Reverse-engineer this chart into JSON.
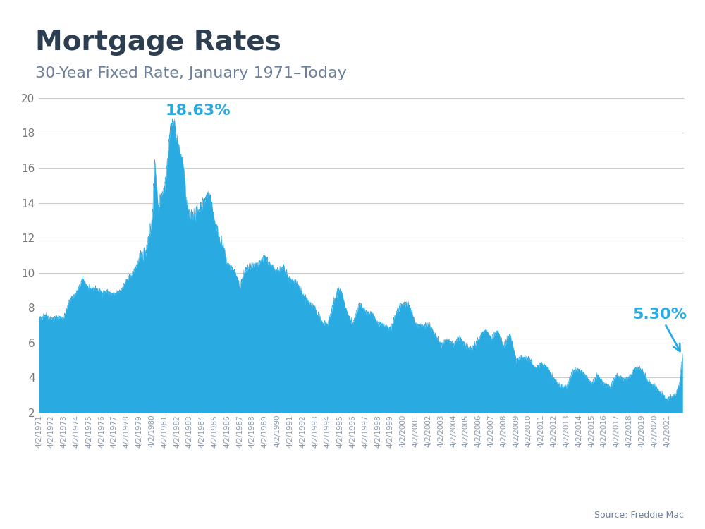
{
  "title": "Mortgage Rates",
  "subtitle": "30-Year Fixed Rate, January 1971–Today",
  "source": "Source: Freddie Mac",
  "fill_color": "#29ABE2",
  "line_color": "#29ABE2",
  "annotation_color": "#29ABE2",
  "title_color": "#2d3e50",
  "subtitle_color": "#6d8099",
  "background_color": "#ffffff",
  "top_bar_color": "#29ABE2",
  "ylim": [
    2,
    20
  ],
  "yticks": [
    2,
    4,
    6,
    8,
    10,
    12,
    14,
    16,
    18,
    20
  ],
  "peak_label": "18.63%",
  "end_label": "5.30%",
  "title_fontsize": 28,
  "subtitle_fontsize": 16,
  "annotation_fontsize": 16,
  "tick_fontsize": 11,
  "key_points": [
    [
      1971.0,
      7.33
    ],
    [
      1971.5,
      7.6
    ],
    [
      1972.0,
      7.37
    ],
    [
      1972.5,
      7.46
    ],
    [
      1973.0,
      7.44
    ],
    [
      1973.5,
      8.5
    ],
    [
      1974.0,
      8.83
    ],
    [
      1974.5,
      9.64
    ],
    [
      1975.0,
      9.05
    ],
    [
      1975.5,
      9.1
    ],
    [
      1976.0,
      8.87
    ],
    [
      1976.5,
      8.9
    ],
    [
      1977.0,
      8.72
    ],
    [
      1977.5,
      8.98
    ],
    [
      1978.0,
      9.56
    ],
    [
      1978.5,
      9.98
    ],
    [
      1979.0,
      10.78
    ],
    [
      1979.5,
      11.2
    ],
    [
      1980.0,
      12.88
    ],
    [
      1980.25,
      16.35
    ],
    [
      1980.5,
      13.5
    ],
    [
      1980.75,
      14.5
    ],
    [
      1981.0,
      14.8
    ],
    [
      1981.25,
      16.52
    ],
    [
      1981.5,
      18.45
    ],
    [
      1981.75,
      18.63
    ],
    [
      1982.0,
      17.6
    ],
    [
      1982.25,
      16.8
    ],
    [
      1982.5,
      16.3
    ],
    [
      1982.75,
      13.9
    ],
    [
      1983.0,
      13.24
    ],
    [
      1983.5,
      13.4
    ],
    [
      1984.0,
      13.87
    ],
    [
      1984.5,
      14.47
    ],
    [
      1984.75,
      13.95
    ],
    [
      1985.0,
      12.92
    ],
    [
      1985.5,
      11.7
    ],
    [
      1986.0,
      10.5
    ],
    [
      1986.5,
      10.18
    ],
    [
      1987.0,
      9.2
    ],
    [
      1987.5,
      10.23
    ],
    [
      1988.0,
      10.35
    ],
    [
      1988.5,
      10.46
    ],
    [
      1989.0,
      10.93
    ],
    [
      1989.5,
      10.32
    ],
    [
      1990.0,
      10.13
    ],
    [
      1990.5,
      10.24
    ],
    [
      1991.0,
      9.5
    ],
    [
      1991.5,
      9.48
    ],
    [
      1992.0,
      8.75
    ],
    [
      1992.5,
      8.22
    ],
    [
      1993.0,
      7.96
    ],
    [
      1993.5,
      7.16
    ],
    [
      1994.0,
      7.06
    ],
    [
      1994.5,
      8.38
    ],
    [
      1995.0,
      9.15
    ],
    [
      1995.5,
      7.77
    ],
    [
      1996.0,
      7.03
    ],
    [
      1996.5,
      8.25
    ],
    [
      1997.0,
      7.82
    ],
    [
      1997.5,
      7.6
    ],
    [
      1998.0,
      7.1
    ],
    [
      1998.5,
      6.94
    ],
    [
      1999.0,
      6.74
    ],
    [
      1999.5,
      7.82
    ],
    [
      2000.0,
      8.21
    ],
    [
      2000.5,
      8.15
    ],
    [
      2001.0,
      7.03
    ],
    [
      2001.5,
      6.97
    ],
    [
      2002.0,
      7.0
    ],
    [
      2002.5,
      6.48
    ],
    [
      2003.0,
      5.85
    ],
    [
      2003.5,
      6.15
    ],
    [
      2004.0,
      5.88
    ],
    [
      2004.5,
      6.29
    ],
    [
      2005.0,
      5.77
    ],
    [
      2005.5,
      5.72
    ],
    [
      2006.0,
      6.22
    ],
    [
      2006.5,
      6.74
    ],
    [
      2007.0,
      6.22
    ],
    [
      2007.5,
      6.7
    ],
    [
      2008.0,
      5.76
    ],
    [
      2008.5,
      6.47
    ],
    [
      2009.0,
      5.01
    ],
    [
      2009.5,
      5.2
    ],
    [
      2010.0,
      5.09
    ],
    [
      2010.5,
      4.57
    ],
    [
      2011.0,
      4.81
    ],
    [
      2011.5,
      4.55
    ],
    [
      2012.0,
      3.91
    ],
    [
      2012.5,
      3.55
    ],
    [
      2013.0,
      3.41
    ],
    [
      2013.5,
      4.37
    ],
    [
      2014.0,
      4.43
    ],
    [
      2014.5,
      4.14
    ],
    [
      2015.0,
      3.66
    ],
    [
      2015.5,
      4.08
    ],
    [
      2016.0,
      3.65
    ],
    [
      2016.5,
      3.48
    ],
    [
      2017.0,
      4.2
    ],
    [
      2017.5,
      3.88
    ],
    [
      2018.0,
      4.03
    ],
    [
      2018.5,
      4.55
    ],
    [
      2019.0,
      4.46
    ],
    [
      2019.5,
      3.75
    ],
    [
      2020.0,
      3.51
    ],
    [
      2020.5,
      3.13
    ],
    [
      2021.0,
      2.73
    ],
    [
      2021.25,
      2.97
    ],
    [
      2021.5,
      2.87
    ],
    [
      2021.75,
      3.09
    ],
    [
      2022.0,
      3.76
    ],
    [
      2022.25,
      5.3
    ]
  ]
}
